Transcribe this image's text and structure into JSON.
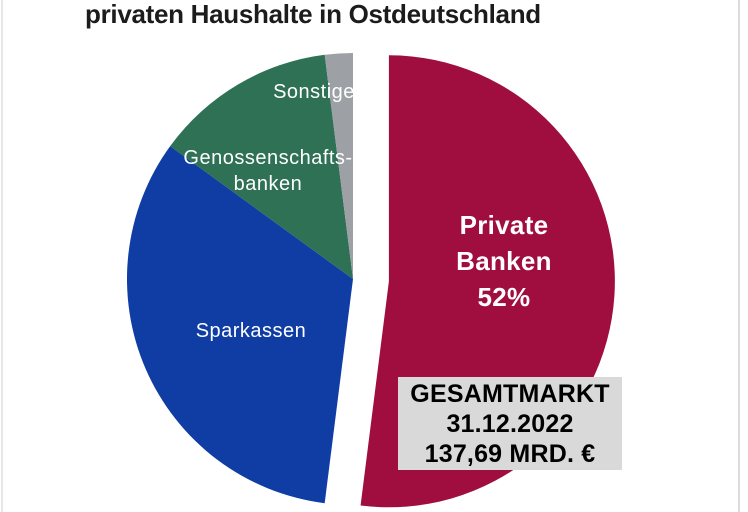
{
  "page": {
    "background": "#ffffff",
    "edge_line_color": "#e0e0e0"
  },
  "title": {
    "text": "privaten Haushalte in Ostdeutschland",
    "color": "#1c1c1c"
  },
  "chart_data": {
    "type": "pie",
    "title": "privaten Haushalte in Ostdeutschland",
    "direction": "clockwise",
    "start_angle_deg": 0,
    "legend_position": "none",
    "label_color": "#ffffff",
    "slices": [
      {
        "id": "private-banken",
        "label": "Private Banken",
        "value": 52,
        "color": "#a00d3f",
        "exploded": true,
        "display_label": "Private\nBanken\n52%"
      },
      {
        "id": "sparkassen",
        "label": "Sparkassen",
        "value": 33,
        "color": "#0f3da4",
        "exploded": false,
        "display_label": "Sparkassen"
      },
      {
        "id": "genossenschaftsbanken",
        "label": "Genossenschaftsbanken",
        "value": 13,
        "color": "#2e7155",
        "exploded": false,
        "display_label": "Genossenschafts-\nbanken"
      },
      {
        "id": "sonstige",
        "label": "Sonstige",
        "value": 2,
        "color": "#9da0a4",
        "exploded": false,
        "display_label": "Sonstige"
      }
    ],
    "annotation": {
      "lines": [
        "GESAMTMARKT",
        "31.12.2022",
        "137,69 MRD. €"
      ],
      "background": "#d9d9d9",
      "text_color": "#000000"
    }
  }
}
